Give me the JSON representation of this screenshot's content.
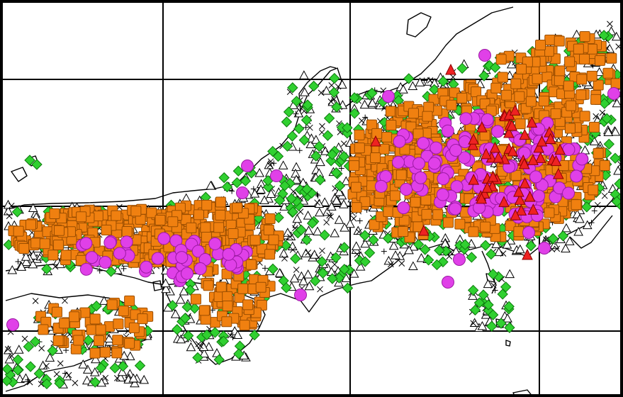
{
  "map": {
    "background": "#ffffff",
    "frame_color": "#000000",
    "grid_color": "#000000",
    "coast_color": "#000000",
    "grid": {
      "vertical_lines": 3,
      "horizontal_lines": 3
    }
  },
  "markers": {
    "circle": {
      "shape": "circle",
      "fill": "#e040e8",
      "stroke": "#9b1aa3"
    },
    "square": {
      "shape": "square",
      "fill": "#f08010",
      "stroke": "#9a4d00"
    },
    "diamond": {
      "shape": "diamond",
      "fill": "#30d030",
      "stroke": "#0e7a0e"
    },
    "triangle_open": {
      "shape": "triangle-outline",
      "fill": "none",
      "stroke": "#000000"
    },
    "triangle_red": {
      "shape": "triangle-filled",
      "fill": "#ee2222",
      "stroke": "#8a0000"
    },
    "cross": {
      "shape": "x-mark",
      "stroke": "#000000"
    },
    "plus": {
      "shape": "plus-mark",
      "stroke": "#000000"
    }
  }
}
